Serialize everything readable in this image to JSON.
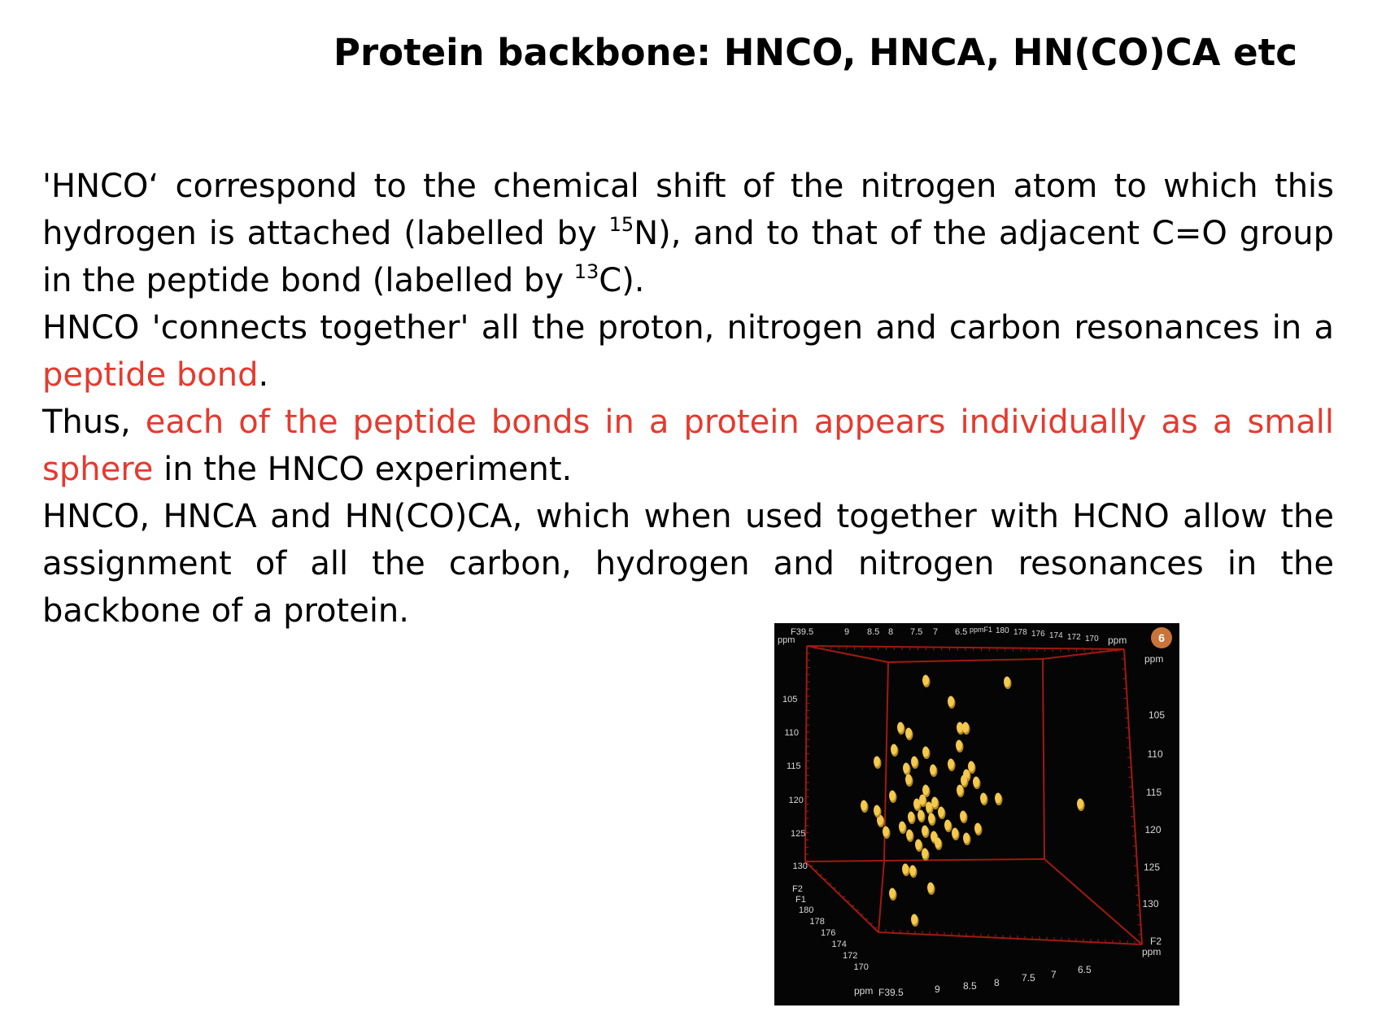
{
  "title": "Protein backbone: HNCO, HNCA, HN(CO)CA etc",
  "paragraphs": {
    "p1": {
      "t1": "'HNCO‘ correspond to the chemical shift of the nitrogen atom to which this hydrogen is attached (labelled by ",
      "sup1": "15",
      "t2": "N), and to that of the adjacent C=O group in the peptide bond (labelled by ",
      "sup2": "13",
      "t3": "C)."
    },
    "p2": {
      "t1": "HNCO 'connects together' all the proton, nitrogen and carbon resonances in a ",
      "red1": "peptide bond",
      "t2": "."
    },
    "p3": {
      "t1": "Thus, ",
      "red1": "each of the peptide bonds in a protein appears individually as a small sphere",
      "t2": " in the HNCO experiment."
    },
    "p4": {
      "t1": "HNCO, HNCA and HN(CO)CA, which when used together with HCNO allow the assignment of all the carbon, hydrogen and nitrogen resonances in the backbone of a protein."
    }
  },
  "figure": {
    "badge": "6",
    "top_axis_left": {
      "label": "F3",
      "ticks": [
        "9.5",
        "9",
        "8.5",
        "8",
        "7.5",
        "7",
        "6.5"
      ],
      "unit": "ppm"
    },
    "top_axis_right": {
      "label": "F1",
      "ticks": [
        "180",
        "178",
        "176",
        "174",
        "172",
        "170"
      ],
      "unit": "ppm"
    },
    "left_axis": {
      "unit": "ppm",
      "ticks": [
        "105",
        "110",
        "115",
        "120",
        "125",
        "130"
      ],
      "end_label": "F2"
    },
    "right_axis": {
      "unit": "ppm",
      "ticks": [
        "105",
        "110",
        "115",
        "120",
        "125",
        "130"
      ],
      "end_label": "F2",
      "end_unit": "ppm"
    },
    "bottom_f1_axis": {
      "label": "F1",
      "ticks": [
        "180",
        "178",
        "176",
        "174",
        "172",
        "170"
      ],
      "unit": "ppm"
    },
    "bottom_f3_axis": {
      "label": "F3",
      "ticks": [
        "9.5",
        "9",
        "8.5",
        "8",
        "7.5",
        "7",
        "6.5"
      ]
    },
    "colors": {
      "background": "#050505",
      "box": "#a01a10",
      "peak": "#f3c94e",
      "peak_shadow": "#b48a22",
      "badge": "#c9743a",
      "label": "#d9d9d9"
    }
  }
}
